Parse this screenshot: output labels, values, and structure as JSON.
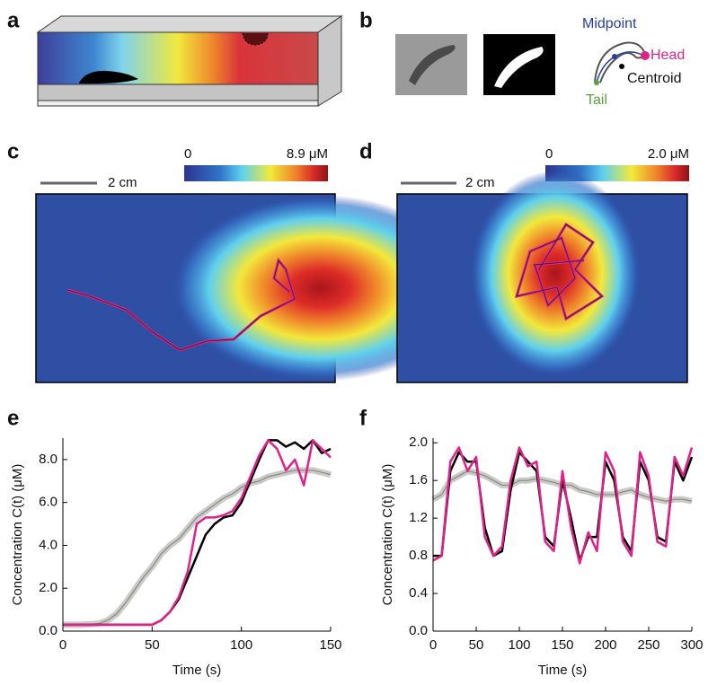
{
  "panels": {
    "a": {
      "label": "a"
    },
    "b": {
      "label": "b",
      "midpoint": "Midpoint",
      "head": "Head",
      "centroid": "Centroid",
      "tail": "Tail"
    },
    "c": {
      "label": "c",
      "scale_bar": "2 cm",
      "cticks": [
        0,
        {
          "value": 8.9,
          "label": "8.9 μM"
        }
      ]
    },
    "d": {
      "label": "d",
      "scale_bar": "2 cm",
      "cticks": [
        0,
        {
          "value": 2.0,
          "label": "2.0 μM"
        }
      ]
    },
    "e": {
      "label": "e"
    },
    "f": {
      "label": "f"
    }
  },
  "chart_data": [
    {
      "type": "line",
      "x": [
        0,
        5,
        10,
        15,
        20,
        25,
        30,
        35,
        40,
        45,
        50,
        55,
        60,
        65,
        70,
        75,
        80,
        85,
        90,
        95,
        100,
        105,
        110,
        115,
        120,
        125,
        130,
        135,
        140,
        145,
        150
      ],
      "series": [
        {
          "color": "#a0a098",
          "style": "band",
          "values": [
            0.3,
            0.3,
            0.3,
            0.32,
            0.35,
            0.5,
            0.8,
            1.3,
            1.9,
            2.5,
            3.0,
            3.6,
            4.0,
            4.3,
            4.8,
            5.3,
            5.6,
            5.9,
            6.2,
            6.4,
            6.7,
            6.9,
            7.0,
            7.2,
            7.3,
            7.4,
            7.5,
            7.5,
            7.5,
            7.4,
            7.3
          ]
        },
        {
          "color": "#000000",
          "values": [
            0.3,
            0.3,
            0.3,
            0.3,
            0.3,
            0.3,
            0.3,
            0.3,
            0.3,
            0.3,
            0.3,
            0.5,
            0.9,
            1.5,
            2.5,
            3.5,
            4.5,
            5.0,
            5.3,
            5.4,
            6.0,
            7.0,
            8.0,
            8.9,
            8.9,
            8.6,
            8.8,
            8.5,
            8.9,
            8.3,
            8.5
          ]
        },
        {
          "color": "#e0218a",
          "values": [
            0.3,
            0.3,
            0.3,
            0.3,
            0.3,
            0.3,
            0.3,
            0.3,
            0.3,
            0.3,
            0.3,
            0.5,
            0.9,
            1.6,
            2.8,
            5.0,
            5.3,
            5.3,
            5.4,
            5.6,
            6.2,
            7.2,
            8.2,
            8.9,
            8.5,
            7.5,
            8.0,
            6.8,
            8.9,
            8.5,
            8.1
          ]
        }
      ],
      "xlim": [
        0,
        150
      ],
      "ylim": [
        0,
        9
      ],
      "xticks": [
        0,
        50,
        100,
        150
      ],
      "yticks": [
        {
          "value": 0,
          "label": "0.0"
        },
        {
          "value": 2,
          "label": "2.0"
        },
        {
          "value": 4,
          "label": "4.0"
        },
        {
          "value": 6,
          "label": "6.0"
        },
        {
          "value": 8,
          "label": "8.0"
        }
      ],
      "xlabel": "Time (s)",
      "ylabel": "Concentration C(t) (μM)"
    },
    {
      "type": "line",
      "x": [
        0,
        10,
        20,
        30,
        40,
        50,
        60,
        70,
        80,
        90,
        100,
        110,
        120,
        130,
        140,
        150,
        160,
        170,
        180,
        190,
        200,
        210,
        220,
        230,
        240,
        250,
        260,
        270,
        280,
        290,
        300
      ],
      "series": [
        {
          "color": "#a0a098",
          "style": "band",
          "values": [
            1.4,
            1.45,
            1.6,
            1.65,
            1.7,
            1.68,
            1.65,
            1.6,
            1.55,
            1.55,
            1.6,
            1.6,
            1.62,
            1.6,
            1.58,
            1.55,
            1.55,
            1.5,
            1.48,
            1.45,
            1.45,
            1.45,
            1.48,
            1.5,
            1.45,
            1.42,
            1.4,
            1.38,
            1.4,
            1.4,
            1.38
          ]
        },
        {
          "color": "#000000",
          "values": [
            0.8,
            0.8,
            1.7,
            1.9,
            1.8,
            1.8,
            1.1,
            0.8,
            0.85,
            1.5,
            1.9,
            1.8,
            1.7,
            1.0,
            0.9,
            1.6,
            1.2,
            0.75,
            1.0,
            1.0,
            1.8,
            1.6,
            1.0,
            0.85,
            1.8,
            1.6,
            1.0,
            0.95,
            1.8,
            1.6,
            1.85
          ]
        },
        {
          "color": "#e0218a",
          "values": [
            0.75,
            0.8,
            1.8,
            1.95,
            1.7,
            1.85,
            1.0,
            0.8,
            0.9,
            1.6,
            1.95,
            1.75,
            1.8,
            0.95,
            0.85,
            1.7,
            1.1,
            0.72,
            1.05,
            0.85,
            1.9,
            1.7,
            0.95,
            0.8,
            1.9,
            1.65,
            0.95,
            0.9,
            1.85,
            1.65,
            1.95
          ]
        }
      ],
      "xlim": [
        0,
        300
      ],
      "ylim": [
        0,
        2.05
      ],
      "xticks": [
        0,
        50,
        100,
        150,
        200,
        250,
        300
      ],
      "yticks": [
        {
          "value": 0,
          "label": "0.0"
        },
        {
          "value": 0.4,
          "label": "0.4"
        },
        {
          "value": 0.8,
          "label": "0.8"
        },
        {
          "value": 1.2,
          "label": "1.2"
        },
        {
          "value": 1.6,
          "label": "1.6"
        },
        {
          "value": 2.0,
          "label": "2.0"
        }
      ],
      "xlabel": "Time (s)",
      "ylabel": "Concentration C(t) (μM)"
    }
  ]
}
